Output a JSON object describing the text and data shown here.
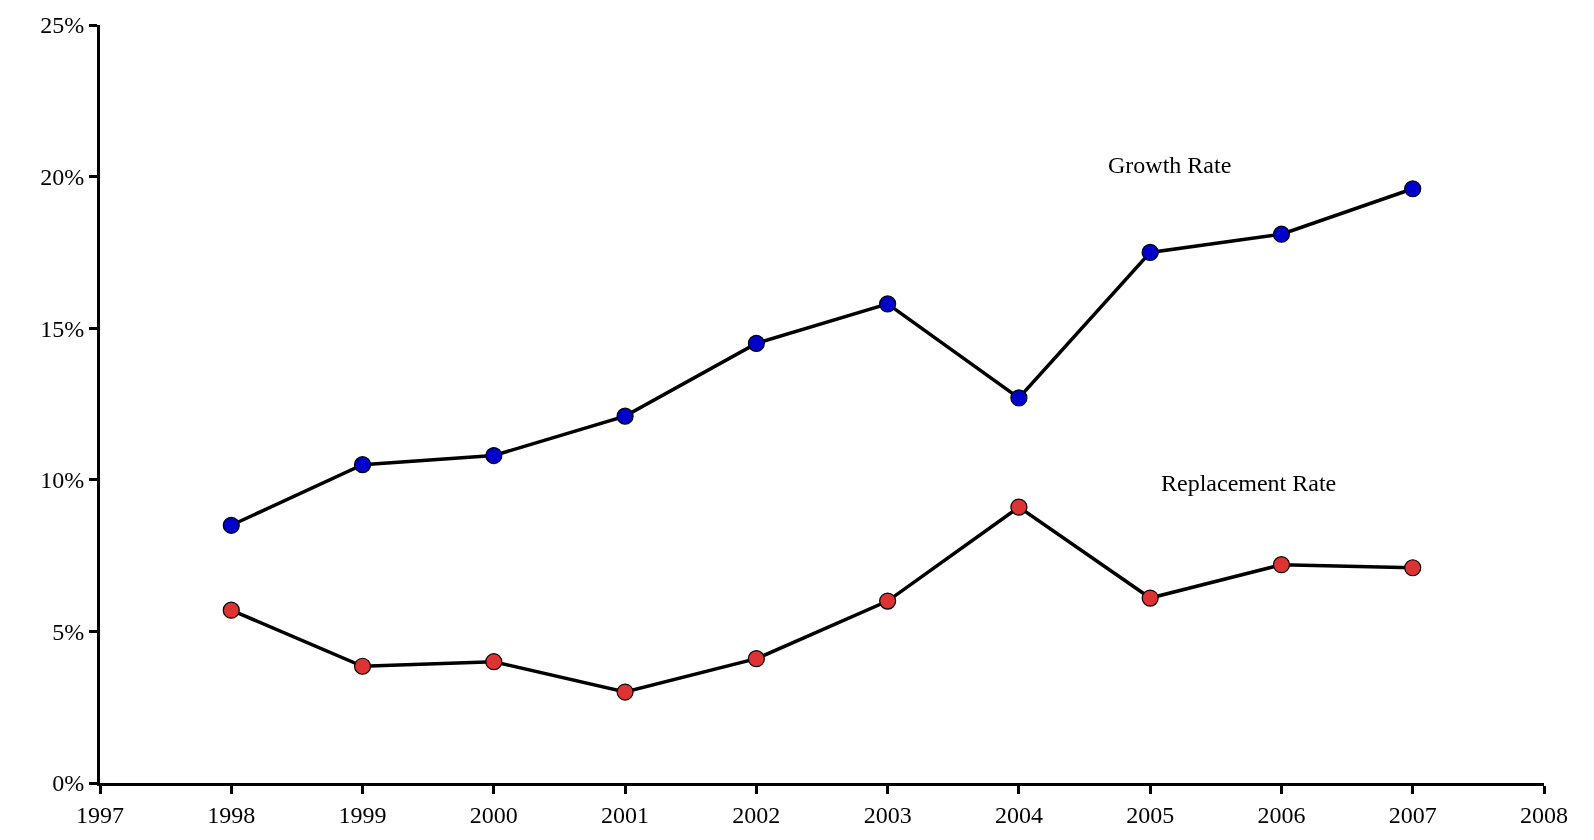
{
  "chart_data": {
    "type": "line",
    "x": [
      1998,
      1999,
      2000,
      2001,
      2002,
      2003,
      2004,
      2005,
      2006,
      2007
    ],
    "series": [
      {
        "name": "Growth Rate",
        "color": "#0000cc",
        "values": [
          8.5,
          10.5,
          10.8,
          12.1,
          14.5,
          15.8,
          12.7,
          17.5,
          18.1,
          19.6
        ]
      },
      {
        "name": "Replacement Rate",
        "color": "#dd3333",
        "values": [
          5.7,
          3.85,
          4.0,
          3.0,
          4.1,
          6.0,
          9.1,
          6.1,
          7.2,
          7.1
        ]
      }
    ],
    "xlim": [
      1997,
      2008
    ],
    "xticks": [
      1997,
      1998,
      1999,
      2000,
      2001,
      2002,
      2003,
      2004,
      2005,
      2006,
      2007,
      2008
    ],
    "ylim": [
      0,
      25
    ],
    "yticks": [
      {
        "value": 0,
        "label": "0%"
      },
      {
        "value": 5,
        "label": "5%"
      },
      {
        "value": 10,
        "label": "10%"
      },
      {
        "value": 15,
        "label": "15%"
      },
      {
        "value": 20,
        "label": "20%"
      },
      {
        "value": 25,
        "label": "25%"
      }
    ],
    "marker": "circle",
    "line_style": "solid",
    "legend": false
  }
}
